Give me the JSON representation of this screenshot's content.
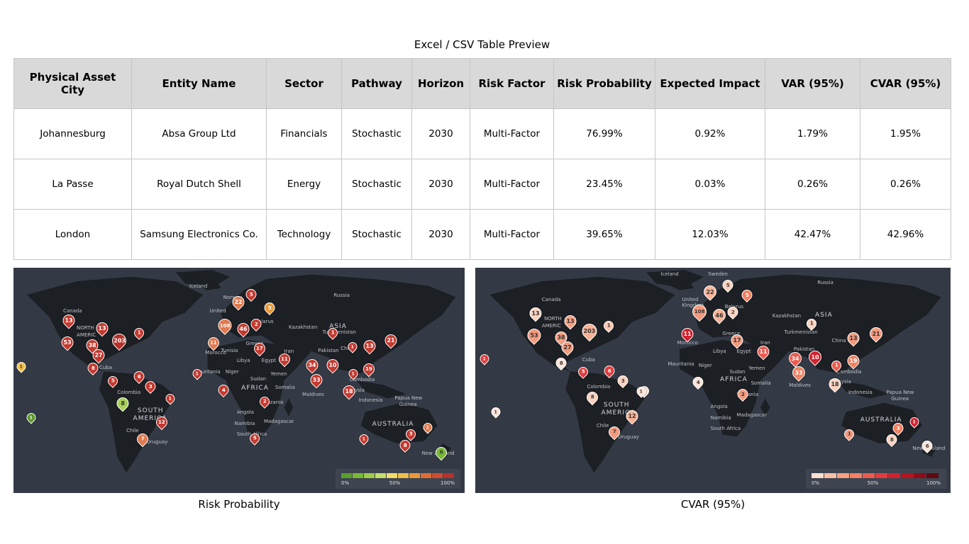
{
  "table_title": "Excel / CSV Table Preview",
  "table": {
    "headers": [
      "Physical Asset City",
      "Entity Name",
      "Sector",
      "Pathway",
      "Horizon",
      "Risk Factor",
      "Risk Probability",
      "Expected Impact",
      "VAR (95%)",
      "CVAR (95%)"
    ],
    "rows": [
      [
        "Johannesburg",
        "Absa Group Ltd",
        "Financials",
        "Stochastic",
        "2030",
        "Multi-Factor",
        "76.99%",
        "0.92%",
        "1.79%",
        "1.95%"
      ],
      [
        "La Passe",
        "Royal Dutch Shell",
        "Energy",
        "Stochastic",
        "2030",
        "Multi-Factor",
        "23.45%",
        "0.03%",
        "0.26%",
        "0.26%"
      ],
      [
        "London",
        "Samsung Electronics Co.",
        "Technology",
        "Stochastic",
        "2030",
        "Multi-Factor",
        "39.65%",
        "12.03%",
        "42.47%",
        "42.96%"
      ]
    ]
  },
  "map_left": {
    "caption": "Risk Probability",
    "legend_ticks": [
      "0%",
      "50%",
      "100%"
    ],
    "legend_colors": [
      "#5aa02c",
      "#7ab835",
      "#9fcc4a",
      "#c7e06a",
      "#f4dc6a",
      "#f0c04a",
      "#eb9a3a",
      "#e06c35",
      "#d14a2e",
      "#b8302a"
    ],
    "pin_counts": [
      "13",
      "13",
      "53",
      "38",
      "27",
      "203",
      "1",
      "8",
      "5",
      "6",
      "3",
      "1",
      "8",
      "12",
      "7",
      "1",
      "1",
      "1",
      "22",
      "5",
      "5",
      "108",
      "46",
      "2",
      "11",
      "17",
      "11",
      "1",
      "4",
      "2",
      "5",
      "34",
      "33",
      "10",
      "1",
      "13",
      "18",
      "19",
      "21",
      "1",
      "3",
      "1",
      "8",
      "6"
    ],
    "region_labels": [
      "Canada",
      "NORTH",
      "AMERIC",
      "Iceland",
      "Norway",
      "Russia",
      "United",
      "Belarus",
      "Kazakhstan",
      "ASIA",
      "Morocco",
      "Tunisia",
      "Greece",
      "Turkmenistan",
      "Iran",
      "Libya",
      "Egypt",
      "Pakistan",
      "China",
      "Mauritania",
      "Niger",
      "Sudan",
      "Yemen",
      "Cuba",
      "Colombia",
      "SOUTH",
      "AMERICA",
      "Chile",
      "Uruguay",
      "AFRICA",
      "Somalia",
      "Tanzania",
      "Maldives",
      "Cambodia",
      "Malaysia",
      "Indonesia",
      "Papua New",
      "Guinea",
      "Angola",
      "Namibia",
      "Madagascar",
      "South Africa",
      "AUSTRALIA",
      "New Zealand"
    ]
  },
  "map_right": {
    "caption": "CVAR (95%)",
    "legend_ticks": [
      "0%",
      "50%",
      "100%"
    ],
    "legend_colors": [
      "#fde0d0",
      "#fbc0a6",
      "#f8a083",
      "#f38067",
      "#ec5b4f",
      "#e23c3d",
      "#d3222f",
      "#b8141f",
      "#8f0c16",
      "#5e0a10"
    ],
    "pin_counts": [
      "13",
      "13",
      "53",
      "38",
      "27",
      "203",
      "1",
      "8",
      "5",
      "6",
      "3",
      "1",
      "8",
      "12",
      "7",
      "1",
      "1",
      "22",
      "5",
      "5",
      "108",
      "46",
      "2",
      "11",
      "17",
      "11",
      "1",
      "4",
      "2",
      "34",
      "33",
      "10",
      "1",
      "13",
      "18",
      "19",
      "21",
      "1",
      "3",
      "1",
      "8",
      "6"
    ],
    "region_labels": [
      "Canada",
      "NORTH",
      "AMERIC",
      "Iceland",
      "Sweden",
      "Russia",
      "United",
      "Kingdom",
      "Belarus",
      "Kazakhstan",
      "ASIA",
      "Morocco",
      "Greece",
      "Turkmenistan",
      "Iran",
      "Libya",
      "Egypt",
      "Pakistan",
      "China",
      "Mauritania",
      "Niger",
      "Sudan",
      "Yemen",
      "Cuba",
      "Colombia",
      "SOUTH",
      "AMERICA",
      "Chile",
      "Uruguay",
      "AFRICA",
      "Somalia",
      "Tanzania",
      "Maldives",
      "Cambodia",
      "Malaysia",
      "Indonesia",
      "Papua New",
      "Guinea",
      "Angola",
      "Namibia",
      "Madagascar",
      "South Africa",
      "AUSTRALIA",
      "New Zealand"
    ]
  }
}
